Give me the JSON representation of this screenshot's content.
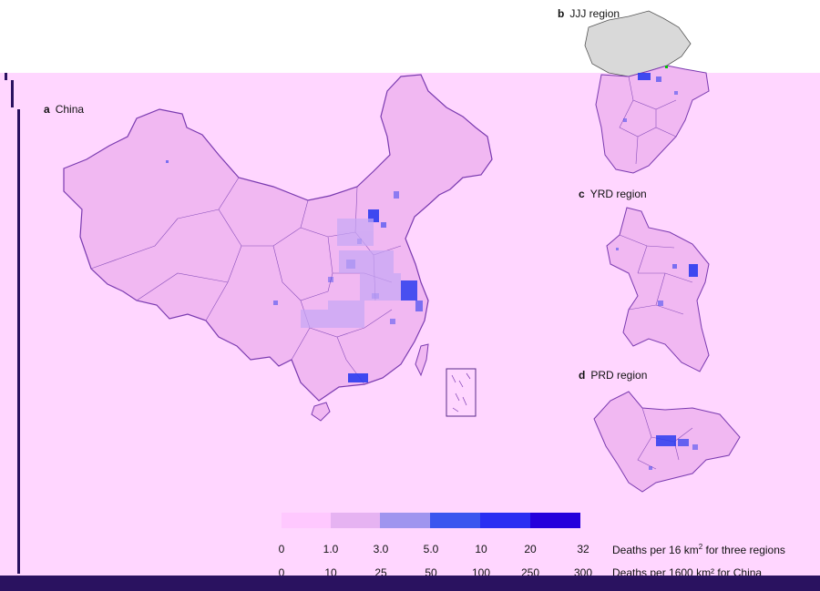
{
  "panels": {
    "a": {
      "letter": "a",
      "name": "China"
    },
    "b": {
      "letter": "b",
      "name": "JJJ region"
    },
    "c": {
      "letter": "c",
      "name": "YRD region"
    },
    "d": {
      "letter": "d",
      "name": "PRD region"
    }
  },
  "legend": {
    "colors": [
      "#ffc8ff",
      "#e6b3f2",
      "#9f95ef",
      "#3a56ef",
      "#2a2ef2",
      "#2500dc"
    ],
    "scale_regions": [
      "0",
      "1.0",
      "3.0",
      "5.0",
      "10",
      "20",
      "32"
    ],
    "scale_regions_caption_prefix": "Deaths per 16 km",
    "scale_regions_caption_sup": "2",
    "scale_regions_caption_suffix": " for three regions",
    "scale_china": [
      "0",
      "10",
      "25",
      "50",
      "100",
      "250",
      "300"
    ],
    "scale_china_caption": "Deaths per 1600 km² for China"
  },
  "colors": {
    "background": "#ffd6ff",
    "land": "#f1b8f2",
    "border": "#7a3ab0",
    "hotspot": "#2a3cf0",
    "nodata": "#d9d9d9",
    "frame": "#2a1260"
  }
}
